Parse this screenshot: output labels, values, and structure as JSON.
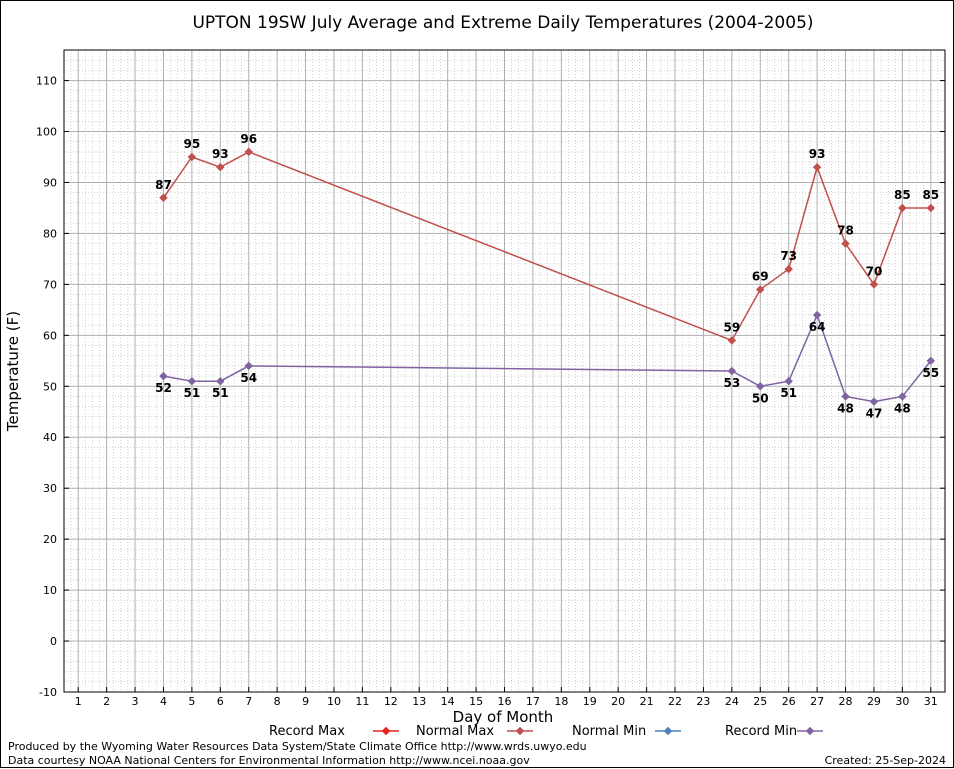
{
  "chart_data": {
    "type": "line",
    "title": "UPTON 19SW July Average and Extreme Daily Temperatures (2004-2005)",
    "xlabel": "Day of Month",
    "ylabel": "Temperature (F)",
    "xlim": [
      0.5,
      31.5
    ],
    "ylim": [
      -10,
      116
    ],
    "x_ticks": [
      1,
      2,
      3,
      4,
      5,
      6,
      7,
      8,
      9,
      10,
      11,
      12,
      13,
      14,
      15,
      16,
      17,
      18,
      19,
      20,
      21,
      22,
      23,
      24,
      25,
      26,
      27,
      28,
      29,
      30,
      31
    ],
    "y_ticks": [
      -10,
      0,
      10,
      20,
      30,
      40,
      50,
      60,
      70,
      80,
      90,
      100,
      110
    ],
    "grid": true,
    "legend_position": "bottom",
    "series": [
      {
        "name": "Record Max",
        "color": "#e8231f",
        "x": [],
        "values": []
      },
      {
        "name": "Normal Max",
        "color": "#c0504d",
        "x": [
          4,
          5,
          6,
          7,
          24,
          25,
          26,
          27,
          28,
          29,
          30,
          31
        ],
        "values": [
          87,
          95,
          93,
          96,
          59,
          69,
          73,
          93,
          78,
          70,
          85,
          85
        ]
      },
      {
        "name": "Normal Min",
        "color": "#4f81bd",
        "x": [],
        "values": []
      },
      {
        "name": "Record Min",
        "color": "#8064a2",
        "x": [
          4,
          5,
          6,
          7,
          24,
          25,
          26,
          27,
          28,
          29,
          30,
          31
        ],
        "values": [
          52,
          51,
          51,
          54,
          53,
          50,
          51,
          64,
          48,
          47,
          48,
          55
        ]
      }
    ]
  },
  "footer": {
    "produced_by": "Produced by the Wyoming Water Resources Data System/State Climate Office http://www.wrds.uwyo.edu",
    "courtesy": "Data courtesy NOAA National Centers for Environmental Information http://www.ncei.noaa.gov",
    "created": "Created:  25-Sep-2024"
  }
}
